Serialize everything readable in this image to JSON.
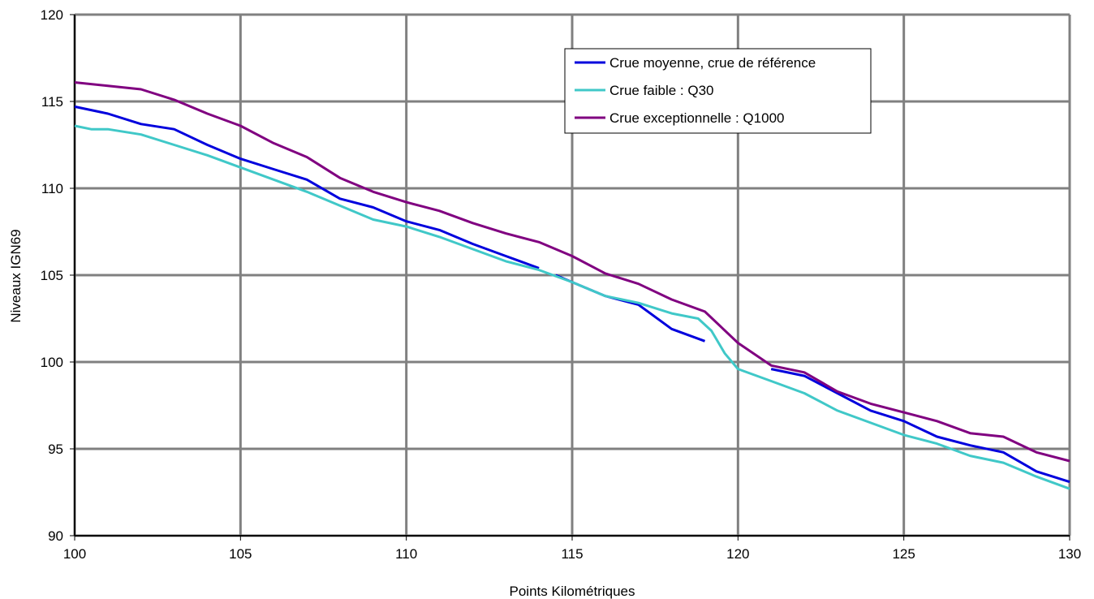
{
  "chart_data": {
    "type": "line",
    "title": "",
    "xlabel": "Points Kilométriques",
    "ylabel": "Niveaux IGN69",
    "xlim": [
      100,
      130
    ],
    "ylim": [
      90,
      120
    ],
    "x_ticks": [
      "100",
      "105",
      "110",
      "115",
      "120",
      "125",
      "130"
    ],
    "y_ticks": [
      "90",
      "95",
      "100",
      "105",
      "110",
      "115",
      "120"
    ],
    "grid": true,
    "legend_position": "top-right",
    "series": [
      {
        "name": "Crue moyenne, crue de référence",
        "color": "#0000dd",
        "segments": [
          [
            [
              100,
              114.7
            ],
            [
              101,
              114.3
            ],
            [
              102,
              113.7
            ],
            [
              103,
              113.4
            ],
            [
              104,
              112.5
            ],
            [
              105,
              111.7
            ],
            [
              106,
              111.1
            ],
            [
              107,
              110.5
            ],
            [
              108,
              109.4
            ],
            [
              109,
              108.9
            ],
            [
              110,
              108.1
            ],
            [
              111,
              107.6
            ],
            [
              112,
              106.8
            ],
            [
              113,
              106.1
            ],
            [
              114,
              105.4
            ]
          ],
          [
            [
              114.5,
              105.0
            ],
            [
              115,
              104.6
            ],
            [
              116,
              103.8
            ],
            [
              117,
              103.3
            ],
            [
              118,
              101.9
            ],
            [
              119,
              101.2
            ]
          ],
          [
            [
              121,
              99.6
            ],
            [
              122,
              99.2
            ],
            [
              123,
              98.2
            ],
            [
              124,
              97.2
            ],
            [
              125,
              96.6
            ],
            [
              126,
              95.7
            ],
            [
              127,
              95.2
            ],
            [
              128,
              94.8
            ],
            [
              129,
              93.7
            ],
            [
              130,
              93.1
            ]
          ]
        ]
      },
      {
        "name": "Crue faible : Q30",
        "color": "#40c8c8",
        "segments": [
          [
            [
              100,
              113.6
            ],
            [
              100.5,
              113.4
            ],
            [
              101,
              113.4
            ],
            [
              102,
              113.1
            ],
            [
              103,
              112.5
            ],
            [
              104,
              111.9
            ],
            [
              105,
              111.2
            ],
            [
              106,
              110.5
            ],
            [
              107,
              109.8
            ],
            [
              108,
              109.0
            ],
            [
              109,
              108.2
            ],
            [
              110,
              107.8
            ],
            [
              111,
              107.2
            ],
            [
              112,
              106.5
            ],
            [
              113,
              105.8
            ],
            [
              114,
              105.3
            ],
            [
              115,
              104.6
            ],
            [
              116,
              103.8
            ],
            [
              117,
              103.4
            ],
            [
              118,
              102.8
            ],
            [
              118.8,
              102.5
            ],
            [
              119.2,
              101.8
            ],
            [
              119.6,
              100.5
            ],
            [
              120,
              99.6
            ],
            [
              121,
              98.9
            ],
            [
              122,
              98.2
            ],
            [
              123,
              97.2
            ],
            [
              124,
              96.5
            ],
            [
              125,
              95.8
            ],
            [
              126,
              95.3
            ],
            [
              127,
              94.6
            ],
            [
              128,
              94.2
            ],
            [
              129,
              93.4
            ],
            [
              130,
              92.7
            ]
          ]
        ]
      },
      {
        "name": "Crue exceptionnelle : Q1000",
        "color": "#800080",
        "segments": [
          [
            [
              100,
              116.1
            ],
            [
              101,
              115.9
            ],
            [
              102,
              115.7
            ],
            [
              103,
              115.1
            ],
            [
              104,
              114.3
            ],
            [
              105,
              113.6
            ],
            [
              106,
              112.6
            ],
            [
              107,
              111.8
            ],
            [
              108,
              110.6
            ],
            [
              109,
              109.8
            ],
            [
              110,
              109.2
            ],
            [
              111,
              108.7
            ],
            [
              112,
              108.0
            ],
            [
              113,
              107.4
            ],
            [
              114,
              106.9
            ],
            [
              115,
              106.1
            ],
            [
              116,
              105.1
            ],
            [
              117,
              104.5
            ],
            [
              118,
              103.6
            ],
            [
              119,
              102.9
            ],
            [
              120,
              101.1
            ],
            [
              121,
              99.8
            ],
            [
              122,
              99.4
            ],
            [
              123,
              98.3
            ],
            [
              124,
              97.6
            ],
            [
              125,
              97.1
            ],
            [
              126,
              96.6
            ],
            [
              127,
              95.9
            ],
            [
              128,
              95.7
            ],
            [
              129,
              94.8
            ],
            [
              130,
              94.3
            ]
          ]
        ]
      }
    ]
  }
}
